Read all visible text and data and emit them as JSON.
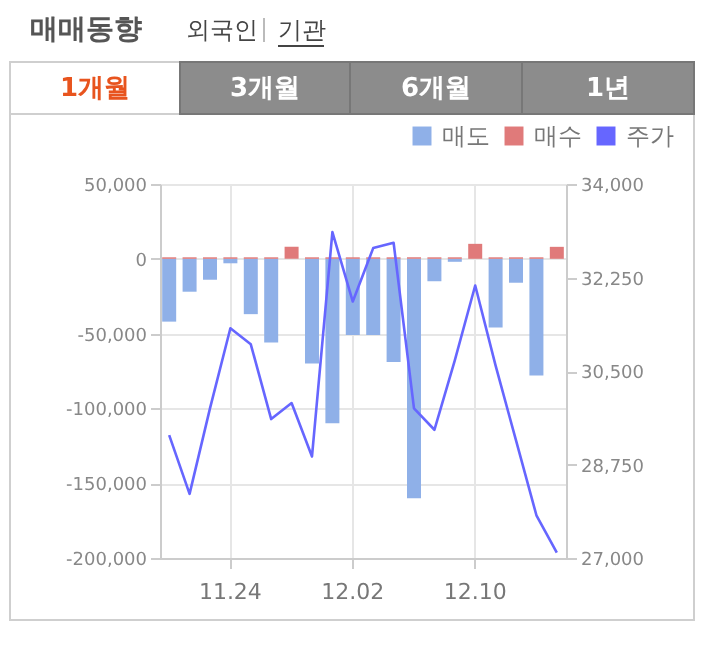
{
  "chart_data": {
    "type": "bar",
    "title": "매매동향",
    "annotations": [
      "외국인",
      "기관",
      "1개월",
      "3개월",
      "6개월",
      "1년"
    ],
    "categories": [
      null,
      null,
      null,
      "11.24",
      null,
      null,
      null,
      null,
      null,
      "12.02",
      null,
      null,
      null,
      null,
      null,
      "12.10",
      null,
      null,
      null,
      null
    ],
    "series": [
      {
        "name": "매도",
        "color": "#8fb0e8",
        "values": [
          -42000,
          -22000,
          -14000,
          -3000,
          -37000,
          -56000,
          0,
          -70000,
          -110000,
          -51000,
          -51000,
          -69000,
          -160000,
          -15000,
          -2000,
          0,
          -46000,
          -16000,
          -78000,
          0
        ]
      },
      {
        "name": "매수",
        "color": "#e07a7a",
        "values": [
          1000,
          1000,
          1000,
          1000,
          1000,
          1000,
          8000,
          1000,
          1000,
          1000,
          1000,
          1000,
          1000,
          1000,
          1000,
          10000,
          1000,
          1000,
          1000,
          8000
        ]
      },
      {
        "name": "주가",
        "color": "#6666ff",
        "type": "line",
        "axis": "y2",
        "values": [
          29300,
          28200,
          29800,
          31300,
          31000,
          29600,
          29900,
          28900,
          33100,
          31800,
          32800,
          32900,
          29800,
          29400,
          30700,
          32100,
          30600,
          29200,
          27800,
          27100
        ]
      }
    ],
    "ylim": [
      -200000,
      50000
    ],
    "yticks": [
      {
        "value": -200000,
        "label": "-200,000"
      },
      {
        "value": -150000,
        "label": "-150,000"
      },
      {
        "value": -100000,
        "label": "-100,000"
      },
      {
        "value": -50000,
        "label": "-50,000"
      },
      0,
      {
        "value": 50000,
        "label": "50,000"
      }
    ],
    "y2lim": [
      27000,
      34000
    ],
    "y2ticks": [
      {
        "value": 27000,
        "label": "27,000"
      },
      {
        "value": 28750,
        "label": "28,750"
      },
      {
        "value": 30500,
        "label": "30,500"
      },
      {
        "value": 32250,
        "label": "32,250"
      },
      {
        "value": 34000,
        "label": "34,000"
      }
    ],
    "grid": true,
    "legend": "top right"
  }
}
